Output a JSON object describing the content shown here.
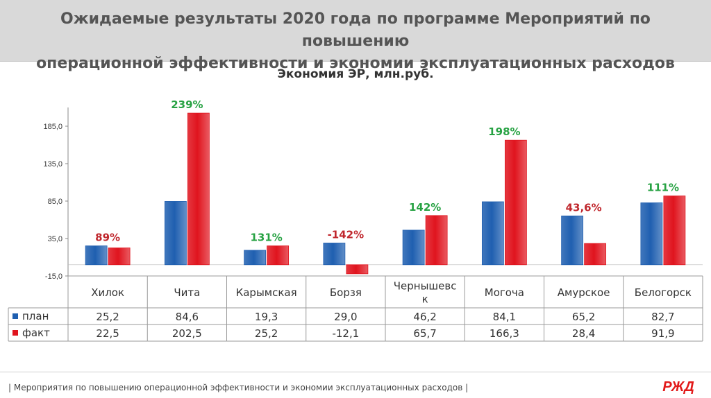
{
  "header": {
    "title_line1": "Ожидаемые результаты 2020 года по программе Мероприятий по повышению",
    "title_line2": "операционной эффективности и экономии эксплуатационных расходов"
  },
  "footer": {
    "text": "| Мероприятия по повышению операционной эффективности и экономии эксплуатационных расходов |"
  },
  "logo": {
    "text": "РЖД",
    "color": "#e21a1a"
  },
  "chart_data": {
    "type": "bar",
    "title": "Экономия ЭР, млн.руб.",
    "categories": [
      "Хилок",
      "Чита",
      "Карымская",
      "Борзя",
      "Чернышевск",
      "Могоча",
      "Амурское",
      "Белогорск"
    ],
    "category_labels": [
      [
        "Хилок"
      ],
      [
        "Чита"
      ],
      [
        "Карымская"
      ],
      [
        "Борзя"
      ],
      [
        "Чернышевс",
        "к"
      ],
      [
        "Могоча"
      ],
      [
        "Амурское"
      ],
      [
        "Белогорск"
      ]
    ],
    "series": [
      {
        "name": "план",
        "color": "#1f5fb0",
        "values": [
          25.2,
          84.6,
          19.3,
          29.0,
          46.2,
          84.1,
          65.2,
          82.7
        ],
        "labels": [
          "25,2",
          "84,6",
          "19,3",
          "29,0",
          "46,2",
          "84,1",
          "65,2",
          "82,7"
        ]
      },
      {
        "name": "факт",
        "color": "#e0141e",
        "values": [
          22.5,
          202.5,
          25.2,
          -12.1,
          65.7,
          166.3,
          28.4,
          91.9
        ],
        "labels": [
          "22,5",
          "202,5",
          "25,2",
          "-12,1",
          "65,7",
          "166,3",
          "28,4",
          "91,9"
        ]
      }
    ],
    "annotations": [
      {
        "text": "89%",
        "color": "#c0272d"
      },
      {
        "text": "239%",
        "color": "#27a243"
      },
      {
        "text": "131%",
        "color": "#27a243"
      },
      {
        "text": "-142%",
        "color": "#c0272d"
      },
      {
        "text": "142%",
        "color": "#27a243"
      },
      {
        "text": "198%",
        "color": "#27a243"
      },
      {
        "text": "43,6%",
        "color": "#c0272d"
      },
      {
        "text": "111%",
        "color": "#27a243"
      }
    ],
    "yticks": [
      -15,
      35,
      85,
      135,
      185
    ],
    "ytick_labels": [
      "-15,0",
      "35,0",
      "85,0",
      "135,0",
      "185,0"
    ],
    "ylim": [
      -15,
      210
    ],
    "xlabel": "",
    "ylabel": "",
    "grid": false,
    "legend": "data-table-left"
  }
}
